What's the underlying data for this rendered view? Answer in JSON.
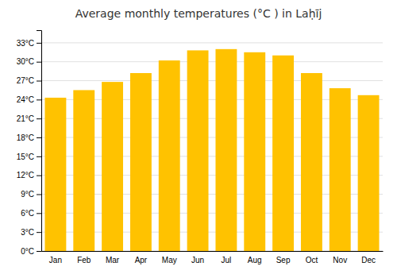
{
  "chart_data": {
    "type": "bar",
    "title": "Average monthly temperatures (°C ) in Laḥīj",
    "categories": [
      "Jan",
      "Feb",
      "Mar",
      "Apr",
      "May",
      "Jun",
      "Jul",
      "Aug",
      "Sep",
      "Oct",
      "Nov",
      "Dec"
    ],
    "values": [
      24.3,
      25.5,
      26.8,
      28.2,
      30.2,
      31.8,
      32.0,
      31.5,
      31.0,
      28.2,
      25.8,
      24.7
    ],
    "color": "#FFC200",
    "ylim": [
      0,
      35
    ],
    "yticks": [
      {
        "value": 0,
        "label": "0°C"
      },
      {
        "value": 3,
        "label": "3°C"
      },
      {
        "value": 6,
        "label": "6°C"
      },
      {
        "value": 9,
        "label": "9°C"
      },
      {
        "value": 12,
        "label": "12°C"
      },
      {
        "value": 15,
        "label": "15°C"
      },
      {
        "value": 18,
        "label": "18°C"
      },
      {
        "value": 21,
        "label": "21°C"
      },
      {
        "value": 24,
        "label": "24°C"
      },
      {
        "value": 27,
        "label": "27°C"
      },
      {
        "value": 30,
        "label": "30°C"
      },
      {
        "value": 33,
        "label": "33°C"
      }
    ],
    "grid": true
  }
}
